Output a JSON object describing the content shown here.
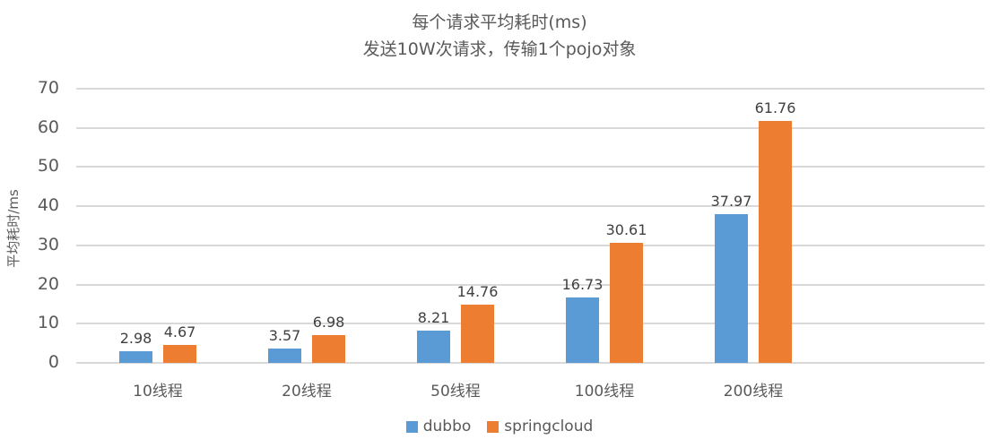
{
  "chart_data": {
    "type": "bar",
    "title": "每个请求平均耗时(ms)",
    "subtitle": "发送10W次请求，传输1个pojo对象",
    "xlabel": "",
    "ylabel": "平均耗时/ms",
    "ylim": [
      0,
      70
    ],
    "yticks": [
      0,
      10,
      20,
      30,
      40,
      50,
      60,
      70
    ],
    "grid": true,
    "legend_position": "bottom",
    "categories": [
      "10线程",
      "20线程",
      "50线程",
      "100线程",
      "200线程"
    ],
    "series": [
      {
        "name": "dubbo",
        "color": "#5b9bd5",
        "values": [
          2.98,
          3.57,
          8.21,
          16.73,
          37.97
        ]
      },
      {
        "name": "springcloud",
        "color": "#ed7d31",
        "values": [
          4.67,
          6.98,
          14.76,
          30.61,
          61.76
        ]
      }
    ]
  },
  "labels": {
    "title": "每个请求平均耗时(ms)",
    "subtitle": "发送10W次请求，传输1个pojo对象",
    "ylabel": "平均耗时/ms",
    "legend": [
      "dubbo",
      "springcloud"
    ]
  }
}
